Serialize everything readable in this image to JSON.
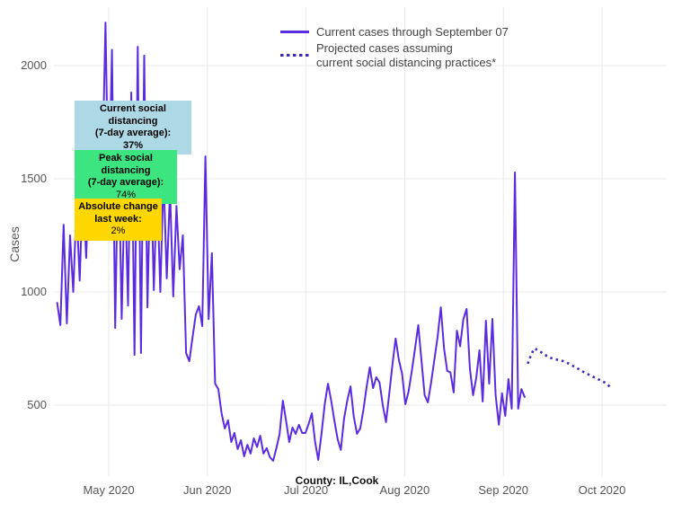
{
  "colors": {
    "line_current": "#5b2be0",
    "line_projected": "#3d2bb8",
    "box_current_distancing": "#add8e6",
    "box_peak_distancing": "#3ce57f",
    "box_absolute_change": "#ffd700",
    "gridline": "#e8e8e8",
    "tick_text": "#565656",
    "background": "#ffffff"
  },
  "legend": {
    "items": [
      {
        "label": "Current cases through September 07",
        "style": "solid"
      },
      {
        "label": "Projected cases assuming\ncurrent social distancing practices*",
        "style": "dotted"
      }
    ]
  },
  "annotations": [
    {
      "id": "current-distancing",
      "line1": "Current social distancing",
      "line2": "(7-day average):",
      "value": "37%",
      "color": "#add8e6"
    },
    {
      "id": "peak-distancing",
      "line1": "Peak social distancing",
      "line2": "(7-day average):",
      "value": "74%",
      "color": "#3ce57f"
    },
    {
      "id": "absolute-change",
      "line1": "Absolute change",
      "line2": "last week:",
      "value": "2%",
      "color": "#ffd700"
    }
  ],
  "chart_data": {
    "type": "line",
    "title": "",
    "xlabel": "County: IL,Cook",
    "ylabel": "Cases",
    "x_tick_labels": [
      "May 2020",
      "Jun 2020",
      "Jul 2020",
      "Aug 2020",
      "Sep 2020",
      "Oct 2020"
    ],
    "y_tick_labels": [
      "2000",
      "1500",
      "1000",
      "500"
    ],
    "y_tick_values": [
      2000,
      1500,
      1000,
      500
    ],
    "ylim": [
      190,
      2250
    ],
    "grid": true,
    "legend_position": "top-center",
    "x_unit": "days, index 0 = first plotted day (mid-April 2020), ~3.6 px/day",
    "series": [
      {
        "name": "Current cases through September 07",
        "style": "solid",
        "color": "#5b2be0",
        "start_day": 0,
        "values": [
          952,
          853,
          1297,
          861,
          1250,
          1000,
          1380,
          1050,
          1490,
          1150,
          1600,
          1250,
          1700,
          1380,
          1500,
          2190,
          1350,
          2070,
          841,
          1680,
          881,
          1500,
          940,
          1881,
          722,
          2083,
          730,
          2044,
          932,
          1600,
          1008,
          1480,
          1000,
          1520,
          1060,
          1450,
          980,
          1380,
          1100,
          1250,
          730,
          694,
          800,
          900,
          937,
          849,
          1599,
          880,
          1171,
          595,
          571,
          464,
          397,
          433,
          337,
          377,
          306,
          345,
          274,
          325,
          286,
          353,
          315,
          365,
          286,
          310,
          270,
          254,
          310,
          373,
          520,
          433,
          337,
          401,
          373,
          413,
          377,
          377,
          417,
          464,
          340,
          258,
          373,
          504,
          595,
          520,
          430,
          349,
          302,
          440,
          520,
          583,
          450,
          373,
          397,
          480,
          580,
          667,
          575,
          623,
          600,
          500,
          425,
          550,
          680,
          794,
          700,
          639,
          504,
          560,
          650,
          750,
          853,
          700,
          544,
          512,
          600,
          700,
          800,
          932,
          750,
          651,
          645,
          556,
          829,
          760,
          880,
          925,
          663,
          544,
          620,
          742,
          516,
          873,
          595,
          881,
          544,
          413,
          552,
          452,
          615,
          484,
          1528,
          484,
          571,
          536
        ]
      },
      {
        "name": "Projected cases assuming current social distancing practices*",
        "style": "dotted",
        "color": "#3d2bb8",
        "start_day": 146,
        "values": [
          683,
          722,
          750,
          744,
          735,
          725,
          716,
          709,
          704,
          701,
          698,
          694,
          688,
          681,
          673,
          665,
          657,
          649,
          641,
          634,
          627,
          620,
          613,
          606,
          599,
          587,
          575
        ]
      }
    ]
  }
}
